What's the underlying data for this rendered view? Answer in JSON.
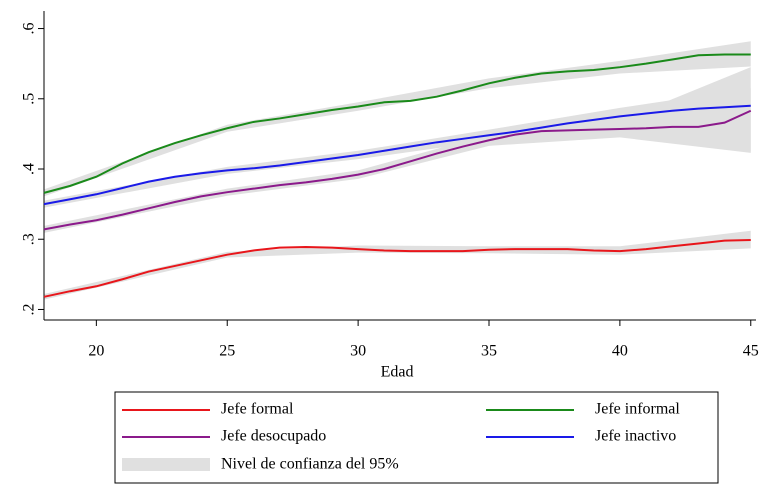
{
  "chart_data": {
    "type": "line",
    "x_label": "Edad",
    "x": [
      18,
      19,
      20,
      21,
      22,
      23,
      24,
      25,
      26,
      27,
      28,
      29,
      30,
      31,
      32,
      33,
      34,
      35,
      36,
      37,
      38,
      39,
      40,
      41,
      42,
      43,
      44,
      45
    ],
    "series": [
      {
        "name": "Jefe formal",
        "color": "#e8161b",
        "values": [
          0.218,
          0.226,
          0.233,
          0.243,
          0.254,
          0.262,
          0.27,
          0.278,
          0.284,
          0.288,
          0.289,
          0.288,
          0.286,
          0.284,
          0.283,
          0.283,
          0.283,
          0.285,
          0.286,
          0.286,
          0.286,
          0.284,
          0.283,
          0.286,
          0.29,
          0.294,
          0.298,
          0.299
        ]
      },
      {
        "name": "Jefe informal",
        "color": "#1a8a1a",
        "values": [
          0.366,
          0.376,
          0.389,
          0.408,
          0.424,
          0.437,
          0.448,
          0.458,
          0.467,
          0.472,
          0.478,
          0.484,
          0.489,
          0.495,
          0.497,
          0.503,
          0.512,
          0.522,
          0.53,
          0.536,
          0.539,
          0.541,
          0.545,
          0.55,
          0.556,
          0.562,
          0.563,
          0.563
        ]
      },
      {
        "name": "Jefe desocupado",
        "color": "#8b1a8b",
        "values": [
          0.314,
          0.321,
          0.327,
          0.335,
          0.344,
          0.353,
          0.361,
          0.367,
          0.372,
          0.377,
          0.381,
          0.386,
          0.392,
          0.4,
          0.411,
          0.422,
          0.432,
          0.441,
          0.449,
          0.454,
          0.455,
          0.456,
          0.457,
          0.458,
          0.46,
          0.46,
          0.466,
          0.483
        ]
      },
      {
        "name": "Jefe inactivo",
        "color": "#1a1ae8",
        "values": [
          0.35,
          0.357,
          0.364,
          0.373,
          0.382,
          0.389,
          0.394,
          0.398,
          0.401,
          0.405,
          0.41,
          0.415,
          0.42,
          0.426,
          0.432,
          0.438,
          0.443,
          0.448,
          0.453,
          0.459,
          0.465,
          0.47,
          0.475,
          0.479,
          0.483,
          0.486,
          0.488,
          0.49
        ]
      }
    ],
    "band": {
      "name": "Nivel de confianza del 95%",
      "color": "#e0e0e0",
      "x": [
        18,
        25,
        30,
        35,
        40,
        45
      ],
      "ranges": [
        {
          "lower": [
            0.214,
            0.274,
            0.281,
            0.28,
            0.278,
            0.287
          ],
          "upper": [
            0.222,
            0.282,
            0.291,
            0.29,
            0.29,
            0.312
          ]
        },
        {
          "lower": [
            0.361,
            0.453,
            0.483,
            0.515,
            0.536,
            0.546
          ],
          "upper": [
            0.371,
            0.463,
            0.495,
            0.529,
            0.554,
            0.582
          ]
        },
        {
          "lower": [
            0.309,
            0.362,
            0.386,
            0.433,
            0.445,
            0.423
          ],
          "upper": [
            0.319,
            0.372,
            0.398,
            0.449,
            0.469,
            0.545
          ]
        },
        {
          "lower": [
            0.345,
            0.393,
            0.414,
            0.44,
            0.463,
            0.425
          ],
          "upper": [
            0.355,
            0.403,
            0.426,
            0.456,
            0.487,
            0.515
          ]
        }
      ]
    },
    "xlim": [
      18,
      45.2
    ],
    "xticks": [
      20,
      25,
      30,
      35,
      40,
      45
    ],
    "ylim": [
      0.185,
      0.625
    ],
    "yticks": [
      {
        "value": 0.2,
        "label": ".2"
      },
      {
        "value": 0.3,
        "label": ".3"
      },
      {
        "value": 0.4,
        "label": ".4"
      },
      {
        "value": 0.5,
        "label": ".5"
      },
      {
        "value": 0.6,
        "label": ".6"
      }
    ]
  }
}
